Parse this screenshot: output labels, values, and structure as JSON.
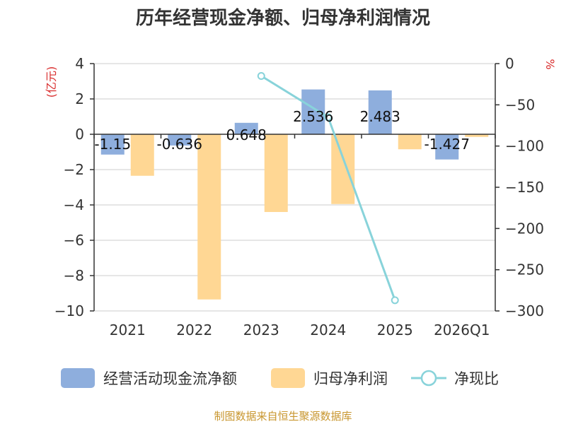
{
  "colors": {
    "cashflow": "#8eaedd",
    "profit": "#ffd794",
    "ratio": "#88d3da",
    "axis": "#333333",
    "grid": "#cccccc",
    "unit": "#d92c2c",
    "source": "#c8962e"
  },
  "chart_data": {
    "type": "bar",
    "title": "历年经营现金净额、归母净利润情况",
    "categories": [
      "2021",
      "2022",
      "2023",
      "2024",
      "2025",
      "2026Q1"
    ],
    "y_left": {
      "unit": "(亿元)",
      "range": [
        -10,
        4
      ],
      "ticks": [
        4,
        2,
        0,
        -2,
        -4,
        -6,
        -8,
        -10
      ]
    },
    "y_right": {
      "unit": "%",
      "range": [
        -300,
        0
      ],
      "ticks": [
        0,
        -50,
        -100,
        -150,
        -200,
        -250,
        -300
      ]
    },
    "series": [
      {
        "name": "经营活动现金流净额",
        "type": "bar",
        "axis": "left",
        "values": [
          -1.15,
          -0.636,
          0.648,
          2.536,
          2.483,
          -1.427
        ],
        "labels": [
          "-1.15",
          "-0.636",
          "0.648",
          "2.536",
          "2.483",
          "-1.427"
        ]
      },
      {
        "name": "归母净利润",
        "type": "bar",
        "axis": "left",
        "values": [
          -2.35,
          -9.35,
          -4.4,
          -3.95,
          -0.85,
          -0.15
        ]
      },
      {
        "name": "净现比",
        "type": "line",
        "axis": "right",
        "values": [
          null,
          null,
          -15,
          -65,
          -287,
          null
        ]
      }
    ],
    "grid": true,
    "legend": "bottom"
  },
  "footer": {
    "source": "制图数据来自恒生聚源数据库"
  }
}
